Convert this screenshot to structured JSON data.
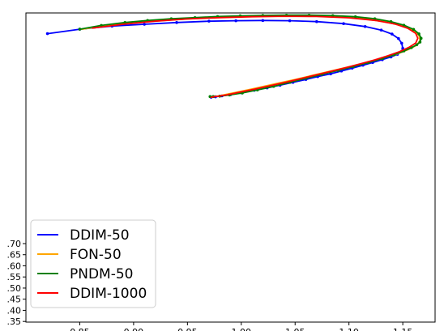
{
  "chart_data": {
    "type": "line",
    "title": "",
    "xlabel": "",
    "ylabel": "",
    "xlim": [
      0.8,
      1.18
    ],
    "ylim": [
      0.347,
      1.737
    ],
    "x_ticks": [
      0.85,
      0.9,
      0.95,
      1.0,
      1.05,
      1.1,
      1.15
    ],
    "x_tick_labels": [
      "0.85",
      "0.90",
      "0.95",
      "1.00",
      "1.05",
      "1.10",
      "1.15"
    ],
    "y_ticks": [
      0.35,
      0.4,
      0.45,
      0.5,
      0.55,
      0.6,
      0.65,
      0.7
    ],
    "y_tick_labels": [
      ".35",
      ".40",
      ".45",
      ".50",
      ".55",
      ".60",
      ".65",
      ".70"
    ],
    "grid": false,
    "legend_position": "bottom-left",
    "series": [
      {
        "name": "DDIM-50",
        "color": "#0000ff",
        "markers": true,
        "x": [
          0.82,
          0.85,
          0.88,
          0.91,
          0.94,
          0.97,
          0.995,
          1.02,
          1.045,
          1.07,
          1.095,
          1.115,
          1.13,
          1.14,
          1.146,
          1.149,
          1.15,
          1.149,
          1.145,
          1.139,
          1.131,
          1.122,
          1.113,
          1.103,
          1.093,
          1.083,
          1.071,
          1.06,
          1.048,
          1.036,
          1.024,
          1.012,
          1.0,
          0.99,
          0.982,
          0.976,
          0.972
        ],
        "y": [
          1.644,
          1.664,
          1.678,
          1.686,
          1.694,
          1.7,
          1.702,
          1.703,
          1.702,
          1.698,
          1.689,
          1.676,
          1.66,
          1.642,
          1.622,
          1.601,
          1.578,
          1.564,
          1.551,
          1.539,
          1.527,
          1.514,
          1.502,
          1.489,
          1.476,
          1.463,
          1.451,
          1.438,
          1.425,
          1.412,
          1.4,
          1.389,
          1.378,
          1.37,
          1.364,
          1.36,
          1.358
        ]
      },
      {
        "name": "FON-50",
        "color": "#ffa500",
        "markers": false,
        "x": [
          0.852,
          0.88,
          0.91,
          0.94,
          0.97,
          1.0,
          1.03,
          1.06,
          1.09,
          1.115,
          1.135,
          1.15,
          1.16,
          1.165,
          1.166,
          1.163,
          1.155,
          1.145,
          1.133,
          1.12,
          1.106,
          1.092,
          1.078,
          1.064,
          1.05,
          1.036,
          1.022,
          1.008,
          0.995,
          0.985,
          0.978,
          0.973
        ],
        "y": [
          1.664,
          1.683,
          1.697,
          1.707,
          1.715,
          1.72,
          1.723,
          1.723,
          1.719,
          1.71,
          1.696,
          1.678,
          1.658,
          1.636,
          1.613,
          1.592,
          1.572,
          1.553,
          1.536,
          1.519,
          1.502,
          1.486,
          1.47,
          1.454,
          1.438,
          1.423,
          1.408,
          1.393,
          1.38,
          1.37,
          1.363,
          1.36
        ]
      },
      {
        "name": "PNDM-50",
        "color": "#008000",
        "markers": true,
        "x": [
          0.85,
          0.87,
          0.892,
          0.913,
          0.935,
          0.957,
          0.978,
          0.999,
          1.02,
          1.042,
          1.063,
          1.085,
          1.106,
          1.124,
          1.139,
          1.151,
          1.16,
          1.165,
          1.167,
          1.166,
          1.163,
          1.158,
          1.151,
          1.142,
          1.131,
          1.118,
          1.104,
          1.09,
          1.075,
          1.06,
          1.045,
          1.03,
          1.015,
          1.001,
          0.989,
          0.98,
          0.974,
          0.971
        ],
        "y": [
          1.664,
          1.681,
          1.694,
          1.703,
          1.711,
          1.716,
          1.721,
          1.724,
          1.726,
          1.727,
          1.727,
          1.725,
          1.72,
          1.711,
          1.698,
          1.682,
          1.663,
          1.643,
          1.623,
          1.606,
          1.594,
          1.581,
          1.566,
          1.549,
          1.532,
          1.514,
          1.496,
          1.479,
          1.461,
          1.443,
          1.425,
          1.407,
          1.391,
          1.377,
          1.368,
          1.363,
          1.361,
          1.361
        ]
      },
      {
        "name": "DDIM-1000",
        "color": "#ff0000",
        "markers": false,
        "x": [
          0.862,
          0.89,
          0.92,
          0.95,
          0.98,
          1.01,
          1.04,
          1.07,
          1.1,
          1.125,
          1.143,
          1.155,
          1.162,
          1.164,
          1.162,
          1.156,
          1.147,
          1.136,
          1.124,
          1.111,
          1.097,
          1.083,
          1.069,
          1.055,
          1.041,
          1.027,
          1.013,
          0.999,
          0.987,
          0.979,
          0.974,
          0.972
        ],
        "y": [
          1.669,
          1.686,
          1.7,
          1.71,
          1.716,
          1.72,
          1.722,
          1.721,
          1.715,
          1.703,
          1.687,
          1.667,
          1.645,
          1.623,
          1.602,
          1.583,
          1.563,
          1.544,
          1.526,
          1.509,
          1.491,
          1.474,
          1.458,
          1.441,
          1.425,
          1.41,
          1.395,
          1.381,
          1.369,
          1.363,
          1.36,
          1.358
        ]
      }
    ]
  }
}
